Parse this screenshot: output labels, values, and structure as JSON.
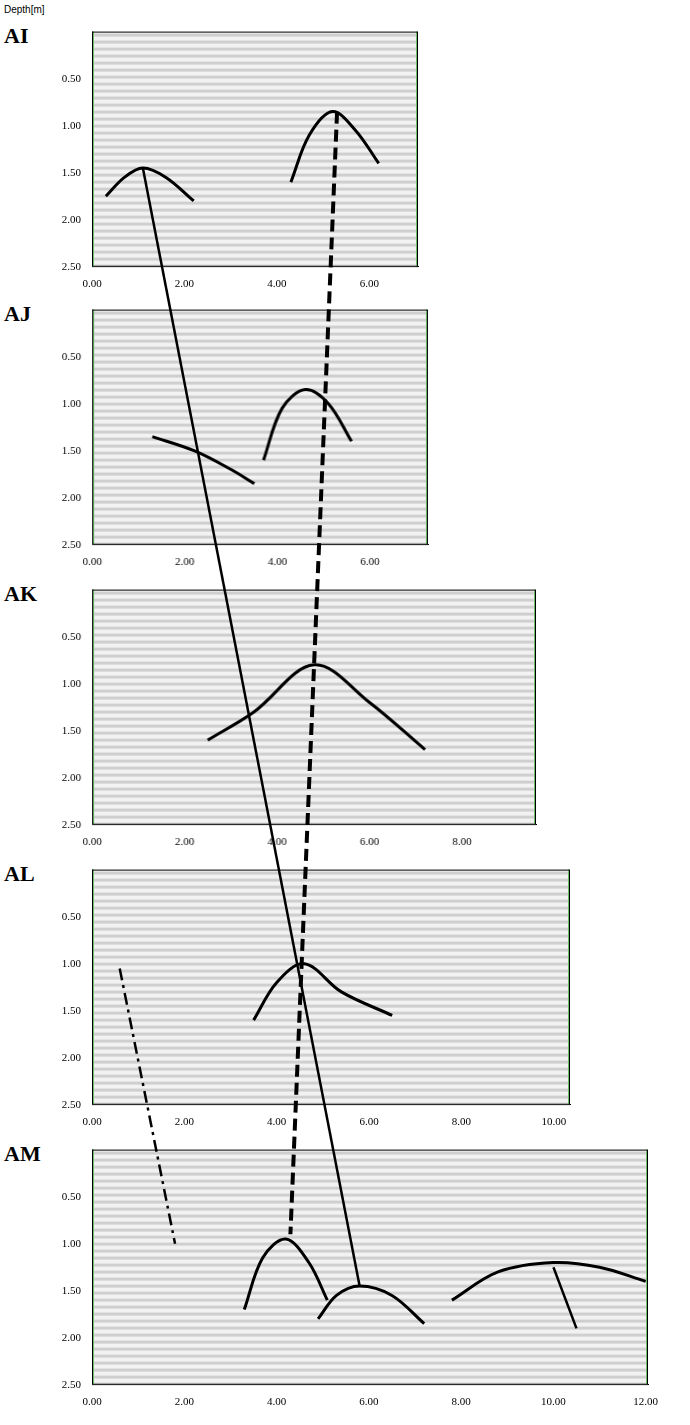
{
  "chart_data": [
    {
      "type": "line",
      "title": "AI",
      "ylabel": "Depth[m]",
      "xlim": [
        0,
        7.05
      ],
      "ylim": [
        0,
        2.5
      ],
      "xticks": [
        {
          "value": 0,
          "label": "0.00"
        },
        {
          "value": 2,
          "label": "2.00"
        },
        {
          "value": 4,
          "label": "4.00"
        },
        {
          "value": 6,
          "label": "6.00"
        }
      ],
      "yticks": [
        {
          "value": 0.5,
          "label": "0.50"
        },
        {
          "value": 1,
          "label": "1.00"
        },
        {
          "value": 1.5,
          "label": "1.50"
        },
        {
          "value": 2,
          "label": "2.00"
        },
        {
          "value": 2.5,
          "label": "2.50"
        }
      ],
      "series": [
        {
          "color": "#000000",
          "line_style": "solid",
          "x": [
            0.3,
            0.7,
            1.1,
            1.6,
            2.2
          ],
          "values": [
            1.75,
            1.55,
            1.45,
            1.55,
            1.8
          ]
        },
        {
          "color": "#000000",
          "line_style": "solid",
          "x": [
            4.3,
            4.7,
            5.2,
            5.7,
            6.2
          ],
          "values": [
            1.6,
            1.1,
            0.85,
            1.05,
            1.4
          ]
        }
      ]
    },
    {
      "type": "line",
      "title": "AJ",
      "xlim": [
        0,
        7.25
      ],
      "ylim": [
        0,
        2.5
      ],
      "xticks": [
        {
          "value": 0,
          "label": "0.00"
        },
        {
          "value": 2,
          "label": "2.00"
        },
        {
          "value": 4,
          "label": "4.00"
        },
        {
          "value": 6,
          "label": "6.00"
        }
      ],
      "yticks": [
        {
          "value": 0.5,
          "label": "0.50"
        },
        {
          "value": 1,
          "label": "1.00"
        },
        {
          "value": 1.5,
          "label": "1.50"
        },
        {
          "value": 2,
          "label": "2.00"
        },
        {
          "value": 2.5,
          "label": "2.50"
        }
      ],
      "series": [
        {
          "color": "#000000",
          "line_style": "solid",
          "x": [
            3.7,
            4.1,
            4.6,
            5.1,
            5.6
          ],
          "values": [
            1.6,
            1.05,
            0.85,
            1.0,
            1.4
          ]
        },
        {
          "color": "#000000",
          "line_style": "solid",
          "x": [
            1.3,
            2.2,
            3.0,
            3.5
          ],
          "values": [
            1.35,
            1.5,
            1.7,
            1.85
          ]
        }
      ]
    },
    {
      "type": "line",
      "title": "AK",
      "xlim": [
        0,
        9.6
      ],
      "ylim": [
        0,
        2.5
      ],
      "xticks": [
        {
          "value": 0,
          "label": "0.00"
        },
        {
          "value": 2,
          "label": "2.00"
        },
        {
          "value": 4,
          "label": "4.00"
        },
        {
          "value": 6,
          "label": "6.00"
        },
        {
          "value": 8,
          "label": "8.00"
        }
      ],
      "yticks": [
        {
          "value": 0.5,
          "label": "0.50"
        },
        {
          "value": 1,
          "label": "1.00"
        },
        {
          "value": 1.5,
          "label": "1.50"
        },
        {
          "value": 2,
          "label": "2.00"
        },
        {
          "value": 2.5,
          "label": "2.50"
        }
      ],
      "series": [
        {
          "color": "#000000",
          "line_style": "solid",
          "x": [
            2.5,
            3.5,
            4.8,
            6.0,
            7.2
          ],
          "values": [
            1.6,
            1.3,
            0.8,
            1.2,
            1.7
          ]
        }
      ]
    },
    {
      "type": "line",
      "title": "AL",
      "xlim": [
        0,
        10.35
      ],
      "ylim": [
        0,
        2.5
      ],
      "xticks": [
        {
          "value": 0,
          "label": "0.00"
        },
        {
          "value": 2,
          "label": "2.00"
        },
        {
          "value": 4,
          "label": "4.00"
        },
        {
          "value": 6,
          "label": "6.00"
        },
        {
          "value": 8,
          "label": "8.00"
        },
        {
          "value": 10,
          "label": "10.00"
        }
      ],
      "yticks": [
        {
          "value": 0.5,
          "label": "0.50"
        },
        {
          "value": 1,
          "label": "1.00"
        },
        {
          "value": 1.5,
          "label": "1.50"
        },
        {
          "value": 2,
          "label": "2.00"
        },
        {
          "value": 2.5,
          "label": "2.50"
        }
      ],
      "series": [
        {
          "color": "#000000",
          "line_style": "solid",
          "x": [
            3.5,
            4.0,
            4.6,
            5.4,
            6.5
          ],
          "values": [
            1.6,
            1.2,
            1.0,
            1.3,
            1.55
          ]
        }
      ]
    },
    {
      "type": "line",
      "title": "AM",
      "xlim": [
        0,
        12.05
      ],
      "ylim": [
        0,
        2.5
      ],
      "xticks": [
        {
          "value": 0,
          "label": "0.00"
        },
        {
          "value": 2,
          "label": "2.00"
        },
        {
          "value": 4,
          "label": "4.00"
        },
        {
          "value": 6,
          "label": "6.00"
        },
        {
          "value": 8,
          "label": "8.00"
        },
        {
          "value": 10,
          "label": "10.00"
        },
        {
          "value": 12,
          "label": "12.00"
        }
      ],
      "yticks": [
        {
          "value": 0.5,
          "label": "0.50"
        },
        {
          "value": 1,
          "label": "1.00"
        },
        {
          "value": 1.5,
          "label": "1.50"
        },
        {
          "value": 2,
          "label": "2.00"
        },
        {
          "value": 2.5,
          "label": "2.50"
        }
      ],
      "series": [
        {
          "color": "#000000",
          "line_style": "solid",
          "x": [
            3.3,
            3.7,
            4.2,
            4.7,
            5.1
          ],
          "values": [
            1.7,
            1.15,
            0.95,
            1.2,
            1.6
          ]
        },
        {
          "color": "#000000",
          "line_style": "solid",
          "x": [
            4.9,
            5.3,
            5.8,
            6.5,
            7.2
          ],
          "values": [
            1.8,
            1.55,
            1.45,
            1.55,
            1.85
          ]
        },
        {
          "color": "#000000",
          "line_style": "solid",
          "x": [
            7.8,
            8.8,
            10.0,
            11.0,
            12.0
          ],
          "values": [
            1.6,
            1.3,
            1.2,
            1.25,
            1.4
          ]
        }
      ]
    }
  ],
  "interpretation_lines": [
    {
      "line_style": "solid",
      "color": "#000000",
      "points": [
        {
          "panel": "AI",
          "x": 1.1,
          "y": 1.45
        },
        {
          "panel": "AM",
          "x": 5.8,
          "y": 1.45
        }
      ]
    },
    {
      "line_style": "dashed",
      "color": "#000000",
      "points": [
        {
          "panel": "AI",
          "x": 5.3,
          "y": 0.85
        },
        {
          "panel": "AM",
          "x": 4.3,
          "y": 0.9
        }
      ]
    },
    {
      "line_style": "dashdot",
      "color": "#000000",
      "points": [
        {
          "panel": "AL",
          "x": 0.6,
          "y": 1.05
        },
        {
          "panel": "AM",
          "x": 1.8,
          "y": 1.0
        }
      ]
    },
    {
      "line_style": "solid",
      "color": "#000000",
      "points": [
        {
          "panel": "AM",
          "x": 10.0,
          "y": 1.25
        },
        {
          "panel": "AM",
          "x": 10.5,
          "y": 1.9
        }
      ]
    }
  ]
}
